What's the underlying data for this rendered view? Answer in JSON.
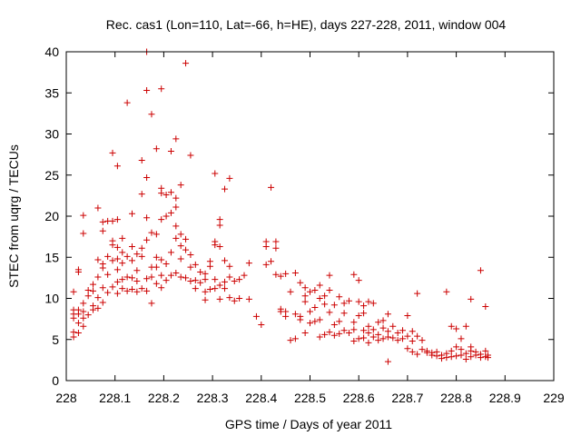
{
  "chart_data": {
    "type": "scatter",
    "title": "Rec. cas1 (Lon=110, Lat=-66, h=HE), days 227-228, 2011, window 004",
    "xlabel": "GPS time / Days of year 2011",
    "ylabel": "STEC from uqrg / TECUs",
    "xlim": [
      228,
      229
    ],
    "ylim": [
      0,
      40
    ],
    "xticks": [
      "228",
      "228.1",
      "228.2",
      "228.3",
      "228.4",
      "228.5",
      "228.6",
      "228.7",
      "228.8",
      "228.9",
      "229"
    ],
    "yticks": [
      "0",
      "5",
      "10",
      "15",
      "20",
      "25",
      "30",
      "35",
      "40"
    ],
    "grid": false,
    "marker": "+",
    "colors": {
      "marker": "#cc0000",
      "axis": "#000000"
    },
    "series": [
      {
        "name": "STEC",
        "points": [
          [
            228.015,
            5.3
          ],
          [
            228.015,
            5.9
          ],
          [
            228.015,
            7.6
          ],
          [
            228.015,
            8.1
          ],
          [
            228.015,
            8.6
          ],
          [
            228.015,
            10.8
          ],
          [
            228.025,
            5.8
          ],
          [
            228.025,
            7.0
          ],
          [
            228.025,
            8.1
          ],
          [
            228.025,
            8.6
          ],
          [
            228.025,
            13.2
          ],
          [
            228.025,
            13.5
          ],
          [
            228.035,
            6.6
          ],
          [
            228.035,
            7.6
          ],
          [
            228.035,
            8.4
          ],
          [
            228.035,
            9.4
          ],
          [
            228.035,
            17.9
          ],
          [
            228.035,
            20.1
          ],
          [
            228.045,
            8.0
          ],
          [
            228.045,
            10.3
          ],
          [
            228.045,
            11.0
          ],
          [
            228.055,
            8.6
          ],
          [
            228.055,
            9.1
          ],
          [
            228.055,
            10.9
          ],
          [
            228.055,
            11.7
          ],
          [
            228.065,
            8.8
          ],
          [
            228.065,
            10.1
          ],
          [
            228.065,
            12.6
          ],
          [
            228.065,
            14.7
          ],
          [
            228.065,
            21.0
          ],
          [
            228.075,
            9.5
          ],
          [
            228.075,
            11.3
          ],
          [
            228.075,
            13.7
          ],
          [
            228.075,
            14.2
          ],
          [
            228.075,
            18.2
          ],
          [
            228.075,
            19.3
          ],
          [
            228.085,
            10.7
          ],
          [
            228.085,
            12.9
          ],
          [
            228.085,
            15.1
          ],
          [
            228.085,
            19.4
          ],
          [
            228.095,
            11.4
          ],
          [
            228.095,
            14.6
          ],
          [
            228.095,
            16.5
          ],
          [
            228.095,
            17.0
          ],
          [
            228.095,
            19.4
          ],
          [
            228.095,
            27.7
          ],
          [
            228.105,
            10.6
          ],
          [
            228.105,
            12.0
          ],
          [
            228.105,
            13.5
          ],
          [
            228.105,
            14.8
          ],
          [
            228.105,
            16.2
          ],
          [
            228.105,
            19.6
          ],
          [
            228.105,
            26.1
          ],
          [
            228.115,
            11.2
          ],
          [
            228.115,
            12.3
          ],
          [
            228.115,
            14.3
          ],
          [
            228.115,
            15.6
          ],
          [
            228.115,
            17.3
          ],
          [
            228.125,
            10.9
          ],
          [
            228.125,
            12.6
          ],
          [
            228.125,
            15.1
          ],
          [
            228.125,
            33.8
          ],
          [
            228.135,
            11.1
          ],
          [
            228.135,
            12.5
          ],
          [
            228.135,
            14.6
          ],
          [
            228.135,
            16.3
          ],
          [
            228.135,
            20.3
          ],
          [
            228.145,
            10.8
          ],
          [
            228.145,
            12.1
          ],
          [
            228.145,
            13.4
          ],
          [
            228.145,
            15.4
          ],
          [
            228.155,
            11.2
          ],
          [
            228.155,
            15.1
          ],
          [
            228.155,
            16.1
          ],
          [
            228.155,
            22.7
          ],
          [
            228.155,
            26.8
          ],
          [
            228.165,
            10.9
          ],
          [
            228.165,
            12.4
          ],
          [
            228.165,
            17.1
          ],
          [
            228.165,
            19.8
          ],
          [
            228.165,
            24.7
          ],
          [
            228.165,
            35.3
          ],
          [
            228.165,
            40.0
          ],
          [
            228.175,
            9.4
          ],
          [
            228.175,
            12.6
          ],
          [
            228.175,
            13.8
          ],
          [
            228.175,
            18.0
          ],
          [
            228.175,
            32.4
          ],
          [
            228.185,
            11.8
          ],
          [
            228.185,
            13.8
          ],
          [
            228.185,
            15.0
          ],
          [
            228.185,
            17.8
          ],
          [
            228.185,
            28.2
          ],
          [
            228.195,
            11.3
          ],
          [
            228.195,
            12.8
          ],
          [
            228.195,
            14.7
          ],
          [
            228.195,
            19.6
          ],
          [
            228.195,
            22.8
          ],
          [
            228.195,
            23.4
          ],
          [
            228.195,
            35.5
          ],
          [
            228.205,
            12.2
          ],
          [
            228.205,
            14.2
          ],
          [
            228.205,
            20.0
          ],
          [
            228.205,
            22.6
          ],
          [
            228.215,
            12.8
          ],
          [
            228.215,
            15.6
          ],
          [
            228.215,
            20.4
          ],
          [
            228.215,
            22.9
          ],
          [
            228.215,
            27.9
          ],
          [
            228.225,
            13.1
          ],
          [
            228.225,
            17.3
          ],
          [
            228.225,
            18.8
          ],
          [
            228.225,
            21.1
          ],
          [
            228.225,
            22.2
          ],
          [
            228.225,
            29.4
          ],
          [
            228.235,
            12.6
          ],
          [
            228.235,
            14.8
          ],
          [
            228.235,
            16.4
          ],
          [
            228.235,
            17.8
          ],
          [
            228.235,
            23.8
          ],
          [
            228.245,
            38.6
          ],
          [
            228.245,
            12.5
          ],
          [
            228.245,
            15.9
          ],
          [
            228.245,
            17.2
          ],
          [
            228.255,
            12.1
          ],
          [
            228.255,
            13.8
          ],
          [
            228.255,
            15.3
          ],
          [
            228.255,
            27.4
          ],
          [
            228.265,
            11.2
          ],
          [
            228.265,
            12.2
          ],
          [
            228.265,
            14.1
          ],
          [
            228.275,
            11.9
          ],
          [
            228.275,
            13.2
          ],
          [
            228.285,
            9.8
          ],
          [
            228.285,
            10.8
          ],
          [
            228.285,
            12.3
          ],
          [
            228.285,
            13.0
          ],
          [
            228.295,
            11.1
          ],
          [
            228.295,
            13.9
          ],
          [
            228.295,
            14.5
          ],
          [
            228.305,
            11.2
          ],
          [
            228.305,
            12.3
          ],
          [
            228.305,
            16.5
          ],
          [
            228.305,
            16.9
          ],
          [
            228.305,
            25.2
          ],
          [
            228.315,
            9.9
          ],
          [
            228.315,
            11.6
          ],
          [
            228.315,
            18.9
          ],
          [
            228.315,
            19.6
          ],
          [
            228.315,
            16.3
          ],
          [
            228.325,
            11.2
          ],
          [
            228.325,
            12.0
          ],
          [
            228.325,
            14.6
          ],
          [
            228.325,
            23.3
          ],
          [
            228.335,
            10.1
          ],
          [
            228.335,
            12.6
          ],
          [
            228.335,
            13.9
          ],
          [
            228.335,
            24.6
          ],
          [
            228.345,
            9.7
          ],
          [
            228.345,
            12.1
          ],
          [
            228.355,
            10.0
          ],
          [
            228.355,
            12.3
          ],
          [
            228.365,
            12.8
          ],
          [
            228.375,
            9.9
          ],
          [
            228.375,
            14.3
          ],
          [
            228.39,
            7.8
          ],
          [
            228.4,
            6.8
          ],
          [
            228.41,
            14.1
          ],
          [
            228.41,
            16.3
          ],
          [
            228.41,
            16.9
          ],
          [
            228.42,
            14.5
          ],
          [
            228.42,
            23.5
          ],
          [
            228.43,
            12.9
          ],
          [
            228.43,
            16.1
          ],
          [
            228.43,
            16.9
          ],
          [
            228.44,
            8.4
          ],
          [
            228.44,
            8.7
          ],
          [
            228.44,
            12.7
          ],
          [
            228.45,
            7.8
          ],
          [
            228.45,
            8.4
          ],
          [
            228.45,
            13.0
          ],
          [
            228.46,
            4.9
          ],
          [
            228.46,
            10.8
          ],
          [
            228.47,
            5.1
          ],
          [
            228.47,
            8.1
          ],
          [
            228.47,
            13.1
          ],
          [
            228.48,
            7.4
          ],
          [
            228.48,
            7.8
          ],
          [
            228.48,
            11.9
          ],
          [
            228.49,
            5.8
          ],
          [
            228.49,
            9.6
          ],
          [
            228.49,
            10.3
          ],
          [
            228.49,
            11.3
          ],
          [
            228.5,
            7.0
          ],
          [
            228.5,
            8.4
          ],
          [
            228.5,
            10.8
          ],
          [
            228.51,
            7.2
          ],
          [
            228.51,
            8.9
          ],
          [
            228.51,
            11.0
          ],
          [
            228.52,
            5.3
          ],
          [
            228.52,
            7.4
          ],
          [
            228.52,
            10.0
          ],
          [
            228.52,
            11.6
          ],
          [
            228.53,
            5.6
          ],
          [
            228.53,
            9.3
          ],
          [
            228.53,
            10.3
          ],
          [
            228.54,
            5.9
          ],
          [
            228.54,
            8.3
          ],
          [
            228.54,
            11.0
          ],
          [
            228.54,
            12.8
          ],
          [
            228.55,
            5.5
          ],
          [
            228.55,
            6.8
          ],
          [
            228.55,
            9.2
          ],
          [
            228.56,
            5.7
          ],
          [
            228.56,
            7.2
          ],
          [
            228.56,
            10.2
          ],
          [
            228.57,
            6.1
          ],
          [
            228.57,
            8.2
          ],
          [
            228.57,
            9.4
          ],
          [
            228.58,
            5.8
          ],
          [
            228.58,
            9.7
          ],
          [
            228.59,
            4.8
          ],
          [
            228.59,
            6.2
          ],
          [
            228.59,
            7.1
          ],
          [
            228.59,
            12.9
          ],
          [
            228.6,
            5.1
          ],
          [
            228.6,
            7.9
          ],
          [
            228.6,
            9.6
          ],
          [
            228.6,
            12.2
          ],
          [
            228.61,
            5.2
          ],
          [
            228.61,
            6.1
          ],
          [
            228.61,
            8.2
          ],
          [
            228.61,
            9.1
          ],
          [
            228.62,
            4.6
          ],
          [
            228.62,
            5.8
          ],
          [
            228.62,
            6.6
          ],
          [
            228.62,
            9.6
          ],
          [
            228.63,
            5.3
          ],
          [
            228.63,
            6.2
          ],
          [
            228.63,
            9.4
          ],
          [
            228.64,
            4.9
          ],
          [
            228.64,
            5.6
          ],
          [
            228.64,
            7.1
          ],
          [
            228.65,
            5.1
          ],
          [
            228.65,
            6.4
          ],
          [
            228.65,
            7.3
          ],
          [
            228.66,
            2.3
          ],
          [
            228.66,
            5.3
          ],
          [
            228.66,
            6.0
          ],
          [
            228.66,
            8.1
          ],
          [
            228.67,
            5.2
          ],
          [
            228.67,
            6.6
          ],
          [
            228.68,
            4.9
          ],
          [
            228.68,
            5.8
          ],
          [
            228.69,
            5.1
          ],
          [
            228.69,
            6.1
          ],
          [
            228.7,
            3.9
          ],
          [
            228.7,
            5.4
          ],
          [
            228.7,
            7.9
          ],
          [
            228.71,
            3.5
          ],
          [
            228.71,
            4.8
          ],
          [
            228.71,
            6.0
          ],
          [
            228.72,
            3.2
          ],
          [
            228.72,
            5.4
          ],
          [
            228.72,
            10.6
          ],
          [
            228.73,
            3.8
          ],
          [
            228.73,
            4.9
          ],
          [
            228.74,
            3.4
          ],
          [
            228.74,
            3.6
          ],
          [
            228.75,
            3.1
          ],
          [
            228.75,
            3.4
          ],
          [
            228.76,
            3.0
          ],
          [
            228.76,
            3.5
          ],
          [
            228.77,
            2.7
          ],
          [
            228.77,
            3.1
          ],
          [
            228.78,
            2.8
          ],
          [
            228.78,
            3.3
          ],
          [
            228.78,
            10.8
          ],
          [
            228.79,
            2.9
          ],
          [
            228.79,
            3.6
          ],
          [
            228.79,
            6.6
          ],
          [
            228.8,
            3.0
          ],
          [
            228.8,
            4.1
          ],
          [
            228.8,
            6.3
          ],
          [
            228.81,
            3.1
          ],
          [
            228.81,
            3.8
          ],
          [
            228.81,
            5.1
          ],
          [
            228.82,
            2.6
          ],
          [
            228.82,
            3.3
          ],
          [
            228.82,
            6.6
          ],
          [
            228.83,
            2.9
          ],
          [
            228.83,
            3.6
          ],
          [
            228.83,
            4.1
          ],
          [
            228.83,
            9.9
          ],
          [
            228.84,
            3.1
          ],
          [
            228.84,
            3.5
          ],
          [
            228.85,
            2.8
          ],
          [
            228.85,
            3.2
          ],
          [
            228.85,
            13.4
          ],
          [
            228.86,
            2.9
          ],
          [
            228.86,
            3.6
          ],
          [
            228.86,
            9.0
          ],
          [
            228.865,
            2.8
          ],
          [
            228.865,
            3.1
          ]
        ]
      }
    ]
  }
}
